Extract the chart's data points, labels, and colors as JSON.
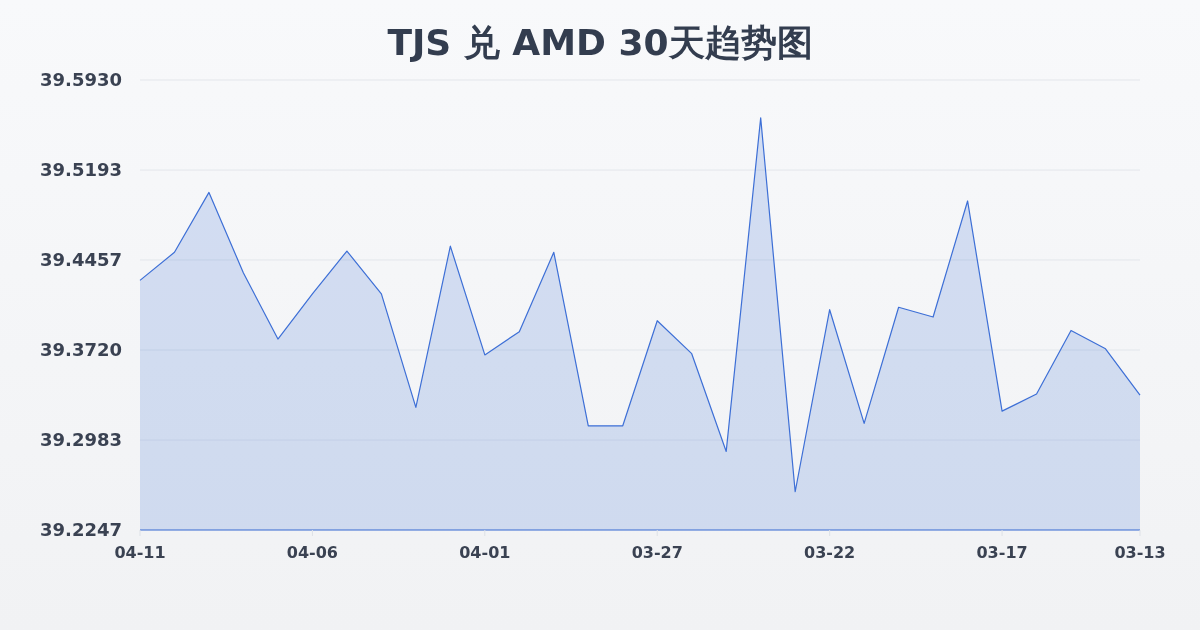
{
  "chart_data": {
    "type": "area",
    "title": "TJS 兑 AMD 30天趋势图",
    "categories": [
      "04-11",
      null,
      null,
      null,
      null,
      "04-06",
      null,
      null,
      null,
      null,
      "04-01",
      null,
      null,
      null,
      null,
      "03-27",
      null,
      null,
      null,
      null,
      "03-22",
      null,
      null,
      null,
      null,
      "03-17",
      null,
      null,
      null,
      "03-13"
    ],
    "series": [
      {
        "color": "#3d6fd6",
        "values": [
          39.429,
          39.452,
          39.501,
          39.435,
          39.381,
          39.418,
          39.453,
          39.418,
          39.325,
          39.457,
          39.368,
          39.387,
          39.452,
          39.31,
          39.31,
          39.396,
          39.369,
          39.289,
          39.562,
          39.256,
          39.405,
          39.312,
          39.407,
          39.399,
          39.494,
          39.322,
          39.336,
          39.388,
          39.373,
          39.335
        ]
      }
    ],
    "ylim": [
      39.2247,
      39.593
    ],
    "yticks": [
      39.2247,
      39.2983,
      {
        "value": 39.372,
        "label": "39.3720"
      },
      39.4457,
      39.5193,
      {
        "value": 39.593,
        "label": "39.5930"
      }
    ],
    "grid": "y"
  }
}
